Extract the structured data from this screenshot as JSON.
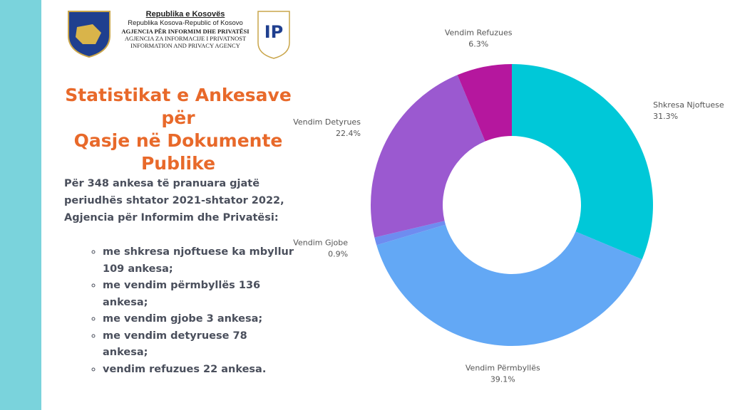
{
  "header": {
    "line1": "Republika e Kosovës",
    "line2": "Republika Kosova-Republic of Kosovo",
    "line3": "AGJENCIA PËR INFORMIM DHE PRIVATËSI",
    "line4": "AGJENCIA ZA INFORMACIJE I PRIVATNOST",
    "line5": "INFORMATION AND PRIVACY AGENCY",
    "logo_text": "IP"
  },
  "title_lines": [
    "Statistikat e Ankesave për",
    "Qasje në Dokumente",
    "Publike"
  ],
  "intro_lines": [
    "Për 348 ankesa të pranuara gjatë",
    "periudhës shtator 2021-shtator 2022,",
    "Agjencia për Informim dhe Privatësi:"
  ],
  "bullets": [
    "me shkresa njoftuese ka mbyllur 109 ankesa;",
    "me vendim përmbyllës 136 ankesa;",
    "me vendim gjobe 3 ankesa;",
    "me vendim detyruese 78 ankesa;",
    "vendim refuzues 22 ankesa."
  ],
  "chart_data": {
    "type": "donut",
    "categories": [
      "Shkresa Njoftuese",
      "Vendim Përmbyllës",
      "Vendim Gjobe",
      "Vendim Detyrues",
      "Vendim Refuzues"
    ],
    "values": [
      31.3,
      39.1,
      0.9,
      22.4,
      6.3
    ],
    "value_labels": [
      "31.3%",
      "39.1%",
      "0.9%",
      "22.4%",
      "6.3%"
    ],
    "colors": [
      "#00c8d8",
      "#63a8f5",
      "#6e8cf0",
      "#9b59d0",
      "#b5179e"
    ]
  }
}
